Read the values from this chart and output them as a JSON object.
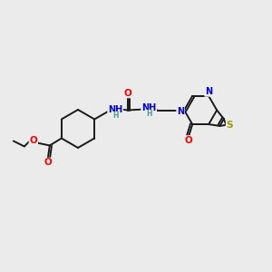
{
  "background_color": "#ebebeb",
  "bond_color": "#1a1a1a",
  "atom_colors": {
    "O": "#ff0000",
    "N": "#0000cc",
    "S": "#999900",
    "H": "#4a9a9a",
    "C": "#1a1a1a"
  },
  "figsize": [
    3.0,
    3.0
  ],
  "dpi": 100
}
